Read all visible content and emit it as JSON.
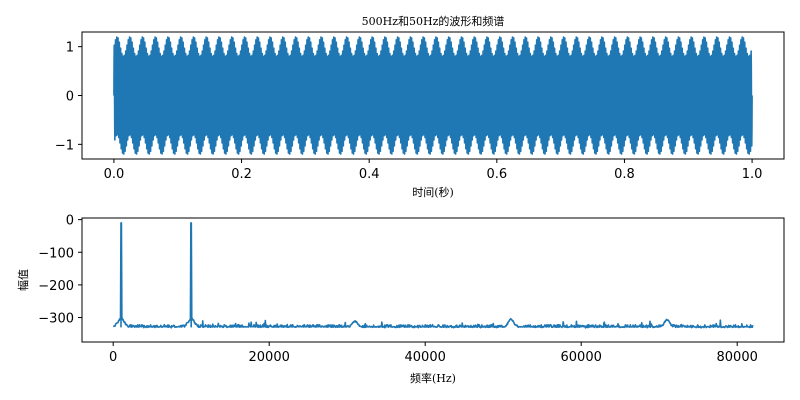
{
  "chart_data": [
    {
      "type": "line",
      "title": "500Hz和50Hz的波形和频谱",
      "xlabel": "时间(秒)",
      "ylabel": "",
      "xlim": [
        -0.05,
        1.05
      ],
      "ylim": [
        -1.3,
        1.3
      ],
      "xticks": [
        0.0,
        0.2,
        0.4,
        0.6,
        0.8,
        1.0
      ],
      "xtick_labels": [
        "0.0",
        "0.2",
        "0.4",
        "0.6",
        "0.8",
        "1.0"
      ],
      "yticks": [
        -1,
        0,
        1
      ],
      "ytick_labels": [
        "−1",
        "0",
        "1"
      ],
      "grid": false,
      "color": "#1f77b4",
      "series": [
        {
          "x_range": [
            0.0,
            1.0
          ],
          "components": [
            {
              "frequency_hz": 500,
              "amplitude": 1.0
            },
            {
              "frequency_hz": 50,
              "amplitude": 0.2
            }
          ]
        }
      ]
    },
    {
      "type": "line",
      "title": "",
      "xlabel": "频率(Hz)",
      "ylabel": "幅值",
      "xlim": [
        -4000,
        86000
      ],
      "ylim": [
        -375,
        5
      ],
      "xticks": [
        0,
        20000,
        40000,
        60000,
        80000
      ],
      "xtick_labels": [
        "0",
        "20000",
        "40000",
        "60000",
        "80000"
      ],
      "yticks": [
        0,
        -100,
        -200,
        -300
      ],
      "ytick_labels": [
        "0",
        "−100",
        "−200",
        "−300"
      ],
      "grid": false,
      "color": "#1f77b4",
      "series": [
        {
          "x_range": [
            0,
            82000
          ],
          "baseline": -330,
          "peaks": [
            {
              "x": 1000,
              "y": -10
            },
            {
              "x": 10000,
              "y": -10
            },
            {
              "x": 31000,
              "y": -312
            },
            {
              "x": 51000,
              "y": -305
            },
            {
              "x": 71000,
              "y": -307
            }
          ]
        }
      ]
    }
  ]
}
